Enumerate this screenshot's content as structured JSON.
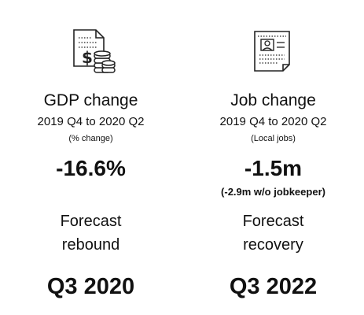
{
  "gdp": {
    "icon": "document-dollar-coins-icon",
    "title": "GDP change",
    "period": "2019 Q4 to 2020 Q2",
    "unit": "(% change)",
    "value": "-16.6%",
    "forecast_line1": "Forecast",
    "forecast_line2": "rebound",
    "forecast_value": "Q3 2020"
  },
  "jobs": {
    "icon": "resume-document-icon",
    "title": "Job change",
    "period": "2019 Q4 to 2020 Q2",
    "unit": "(Local jobs)",
    "value": "-1.5m",
    "note": "(-2.9m w/o jobkeeper)",
    "forecast_line1": "Forecast",
    "forecast_line2": "recovery",
    "forecast_value": "Q3 2022"
  }
}
